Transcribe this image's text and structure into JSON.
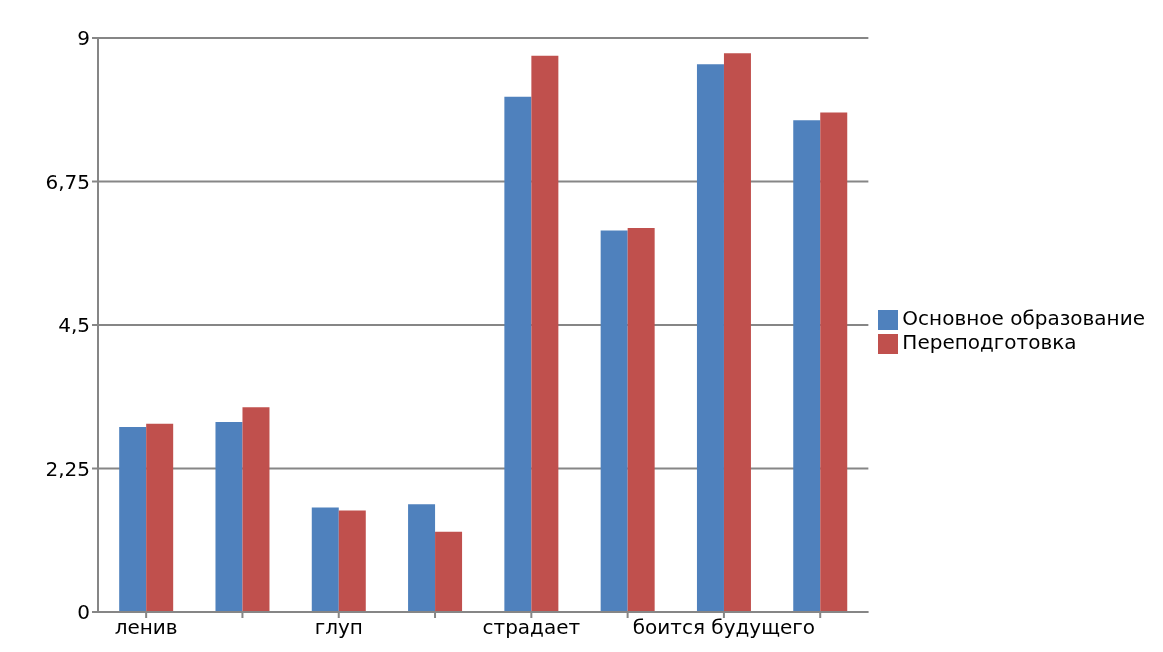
{
  "chart_data": {
    "type": "bar",
    "categories": [
      "ленив",
      null,
      "глуп",
      null,
      "страдает",
      null,
      "боится будущего",
      null
    ],
    "series": [
      {
        "name": "Основное образование",
        "color": "#4f81bd",
        "values": [
          2.9,
          2.98,
          1.64,
          1.69,
          8.08,
          5.98,
          8.59,
          7.71
        ]
      },
      {
        "name": "Переподготовка",
        "color": "#c0504d",
        "values": [
          2.95,
          3.21,
          1.59,
          1.26,
          8.72,
          6.02,
          8.76,
          7.83
        ]
      }
    ],
    "ylim": [
      0,
      9
    ],
    "yticks": [
      0,
      {
        "value": 2.25,
        "label": "2,25"
      },
      {
        "value": 4.5,
        "label": "4,5"
      },
      {
        "value": 6.75,
        "label": "6,75"
      },
      9
    ],
    "grid": "y",
    "legend": "right"
  }
}
